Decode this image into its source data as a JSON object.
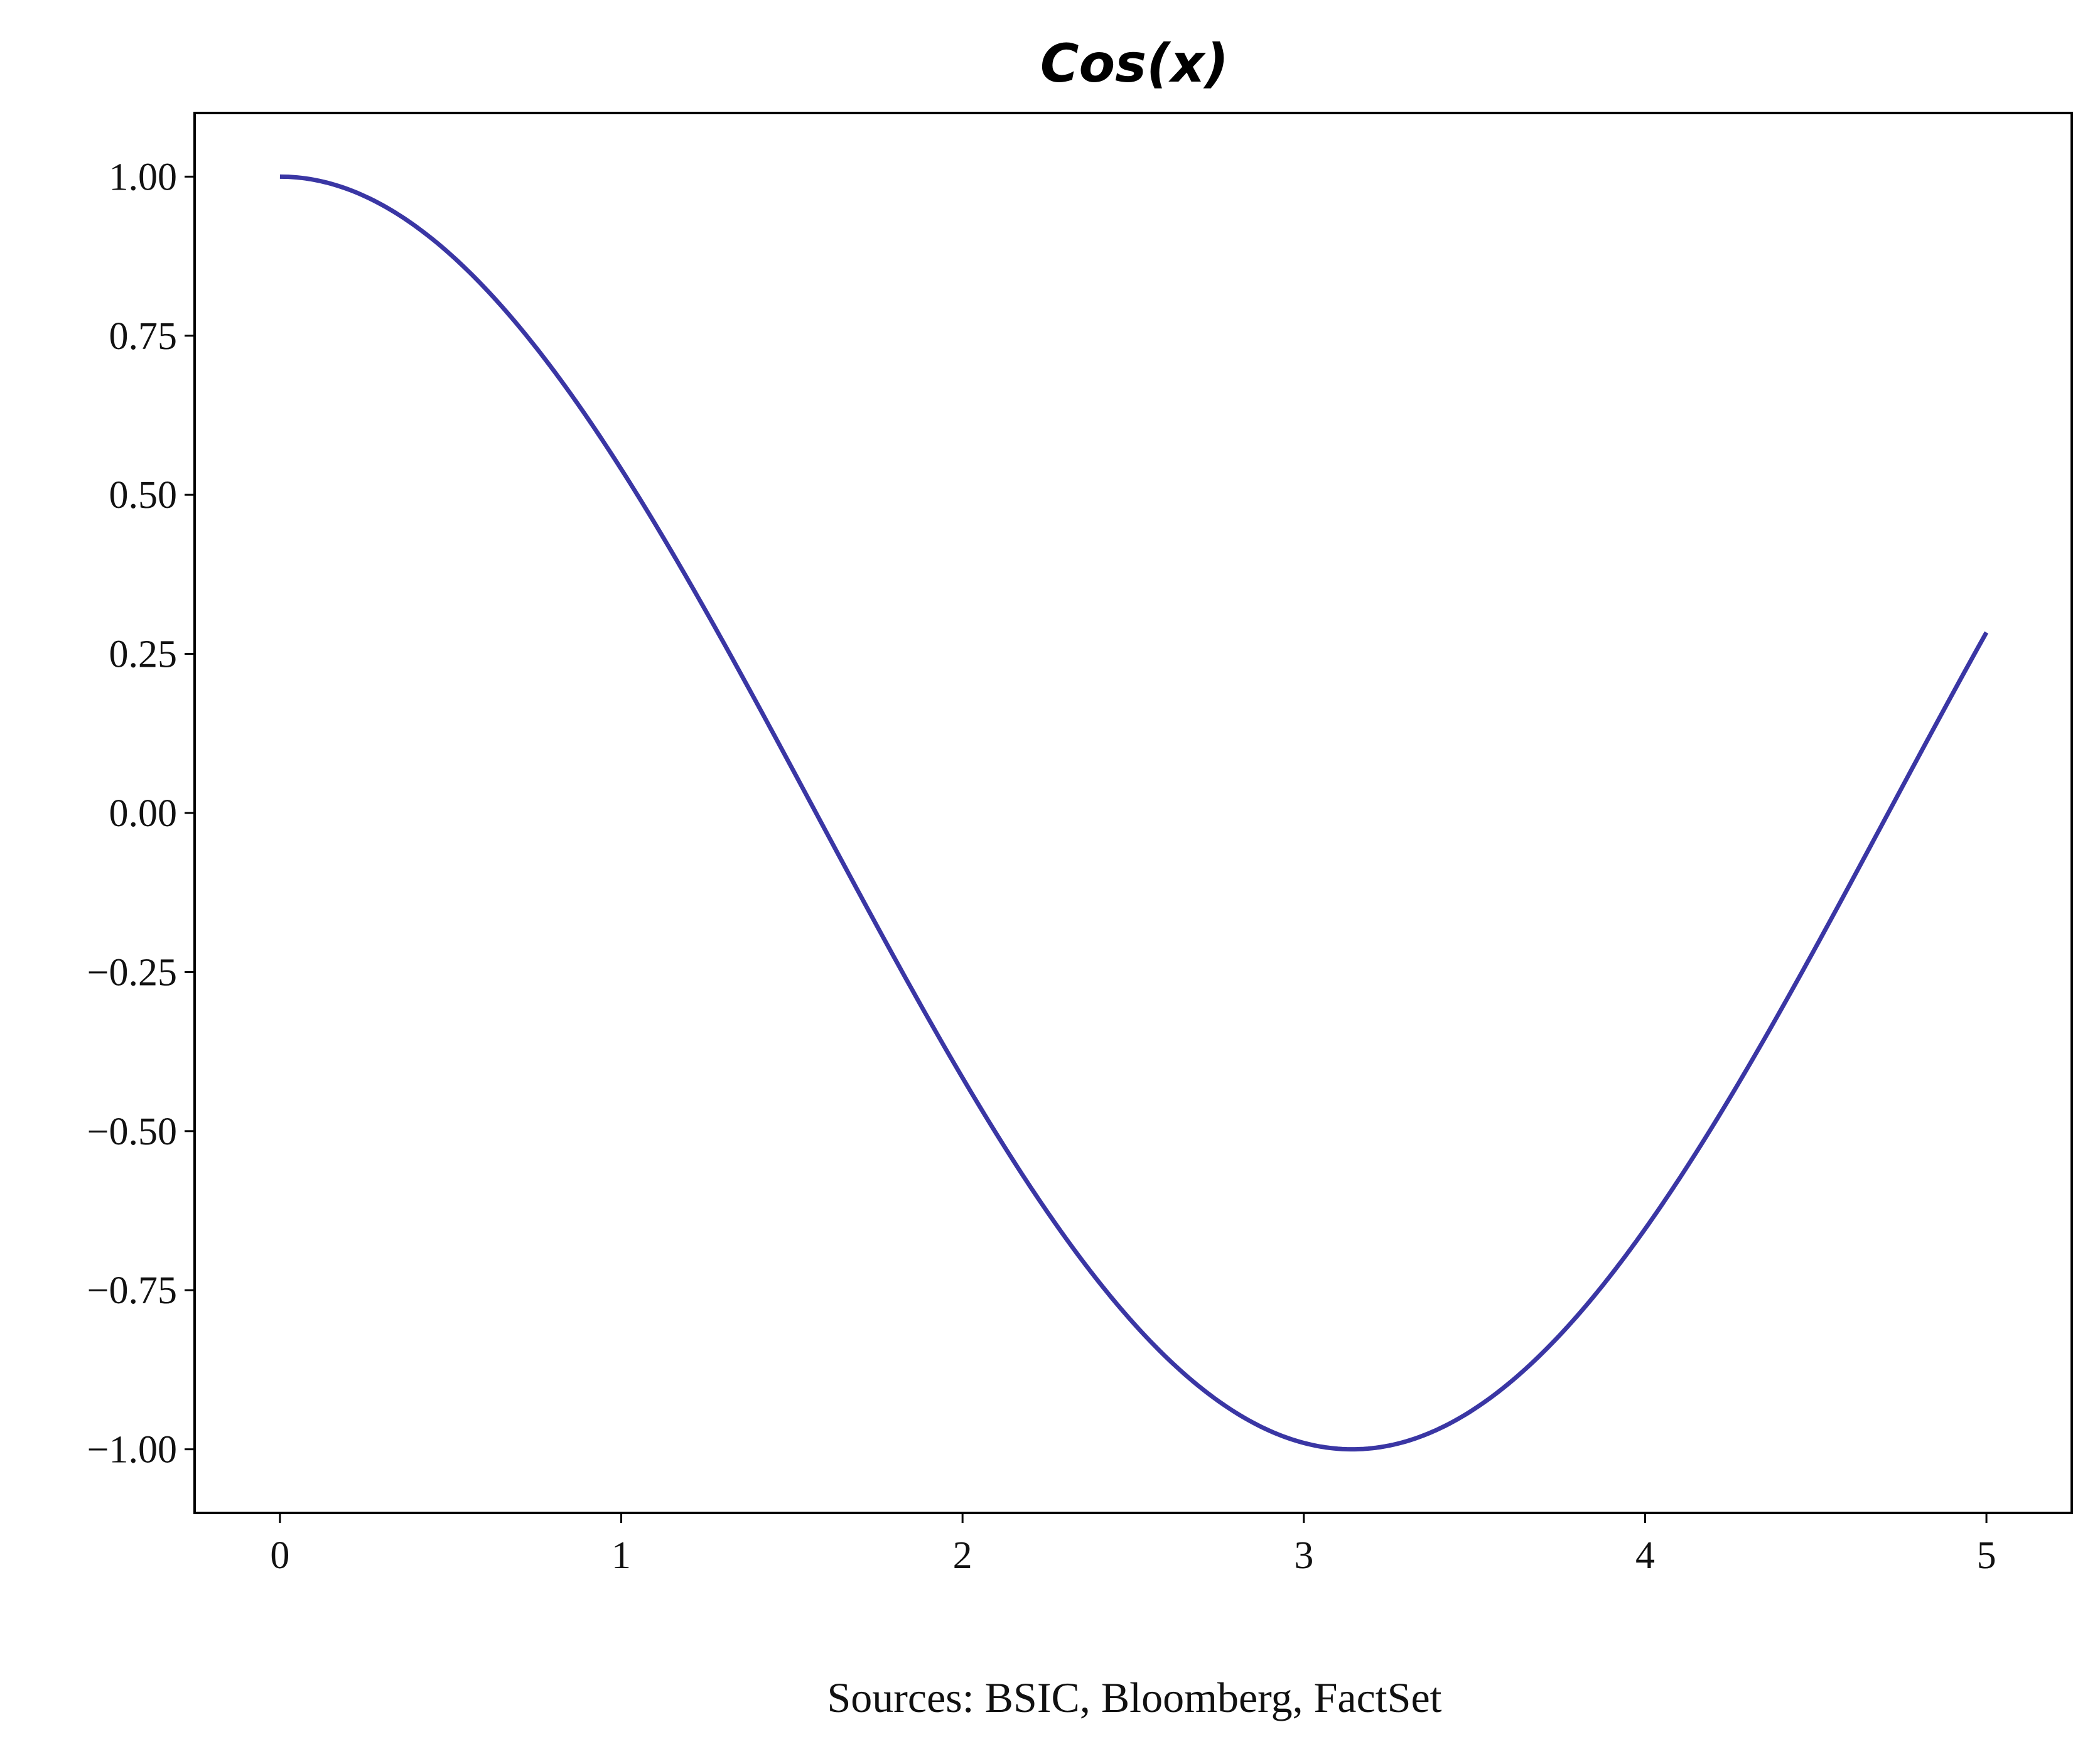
{
  "chart_data": {
    "type": "line",
    "title": "Cos(x)",
    "xlabel": "",
    "ylabel": "",
    "source_note": "Sources: BSIC, Bloomberg, FactSet",
    "function": "cos(x)",
    "xlim": [
      -0.25,
      5.25
    ],
    "ylim": [
      -1.1,
      1.1
    ],
    "x_ticks": [
      0,
      1,
      2,
      3,
      4,
      5
    ],
    "x_tick_labels": [
      "0",
      "1",
      "2",
      "3",
      "4",
      "5"
    ],
    "y_ticks": [
      1.0,
      0.75,
      0.5,
      0.25,
      0.0,
      -0.25,
      -0.5,
      -0.75,
      -1.0
    ],
    "y_tick_labels": [
      "1.00",
      "0.75",
      "0.50",
      "0.25",
      "0.00",
      "−0.25",
      "−0.50",
      "−0.75",
      "−1.00"
    ],
    "grid": false,
    "legend": "none",
    "series": [
      {
        "color": "#3a36a4",
        "x": [
          0,
          0.25,
          0.5,
          0.75,
          1.0,
          1.25,
          1.5,
          1.75,
          2.0,
          2.25,
          2.5,
          2.75,
          3.0,
          3.1416,
          3.25,
          3.5,
          3.75,
          4.0,
          4.25,
          4.5,
          4.75,
          5.0
        ],
        "y": [
          1.0,
          0.969,
          0.878,
          0.732,
          0.54,
          0.315,
          0.071,
          -0.178,
          -0.416,
          -0.628,
          -0.801,
          -0.924,
          -0.99,
          -1.0,
          -0.994,
          -0.936,
          -0.821,
          -0.654,
          -0.446,
          -0.211,
          0.038,
          0.284
        ]
      }
    ]
  }
}
